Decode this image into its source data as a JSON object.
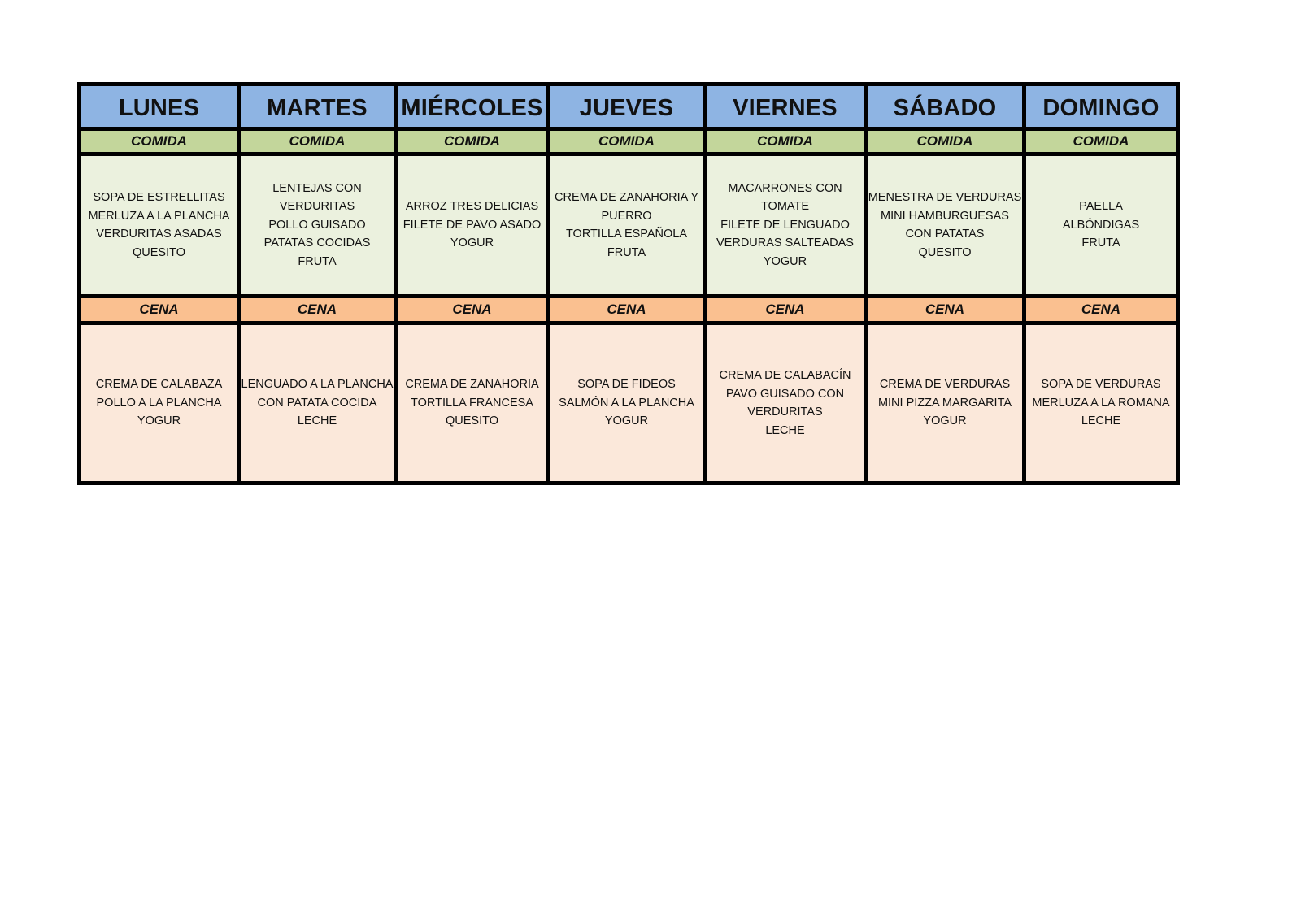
{
  "days": [
    "LUNES",
    "MARTES",
    "MIÉRCOLES",
    "JUEVES",
    "VIERNES",
    "SÁBADO",
    "DOMINGO"
  ],
  "comida_label": "COMIDA",
  "cena_label": "CENA",
  "comida": [
    [
      "SOPA DE ESTRELLITAS",
      "MERLUZA A LA PLANCHA",
      "VERDURITAS ASADAS",
      "QUESITO"
    ],
    [
      "LENTEJAS CON",
      "VERDURITAS",
      "POLLO GUISADO",
      "PATATAS COCIDAS",
      "FRUTA"
    ],
    [
      "ARROZ TRES DELICIAS",
      "FILETE DE PAVO ASADO",
      "YOGUR"
    ],
    [
      "CREMA DE ZANAHORIA Y",
      "PUERRO",
      "TORTILLA ESPAÑOLA",
      "FRUTA"
    ],
    [
      "MACARRONES CON",
      "TOMATE",
      "FILETE DE LENGUADO",
      "VERDURAS SALTEADAS",
      "YOGUR"
    ],
    [
      "MENESTRA DE VERDURAS",
      "MINI HAMBURGUESAS",
      "CON PATATAS",
      "QUESITO"
    ],
    [
      "PAELLA",
      "ALBÓNDIGAS",
      "FRUTA"
    ]
  ],
  "cena": [
    [
      "CREMA DE CALABAZA",
      "POLLO A LA PLANCHA",
      "YOGUR"
    ],
    [
      "LENGUADO A LA PLANCHA",
      "CON PATATA COCIDA",
      "LECHE"
    ],
    [
      "CREMA DE ZANAHORIA",
      "TORTILLA FRANCESA",
      "QUESITO"
    ],
    [
      "SOPA DE FIDEOS",
      "SALMÓN A LA PLANCHA",
      "YOGUR"
    ],
    [
      "CREMA DE CALABACÍN",
      "PAVO GUISADO CON",
      "VERDURITAS",
      "LECHE"
    ],
    [
      "CREMA DE VERDURAS",
      "MINI PIZZA MARGARITA",
      "YOGUR"
    ],
    [
      "SOPA DE VERDURAS",
      "MERLUZA A LA ROMANA",
      "LECHE"
    ]
  ]
}
